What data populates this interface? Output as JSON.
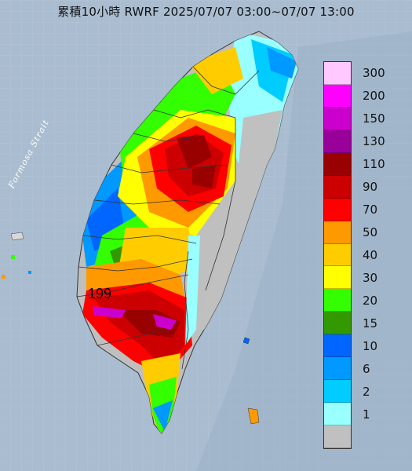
{
  "title": "累積10小時 RWRF 2025/07/07 03:00~07/07 13:00",
  "strait_label": "Formosa Strait",
  "max_value_label": "199",
  "legend": {
    "items": [
      {
        "label": "300",
        "color": "#ffc9ff"
      },
      {
        "label": "200",
        "color": "#ff00ff"
      },
      {
        "label": "150",
        "color": "#cc00cc"
      },
      {
        "label": "130",
        "color": "#990099"
      },
      {
        "label": "110",
        "color": "#990000"
      },
      {
        "label": "90",
        "color": "#cc0000"
      },
      {
        "label": "70",
        "color": "#ff0000"
      },
      {
        "label": "50",
        "color": "#ff9900"
      },
      {
        "label": "40",
        "color": "#ffcc00"
      },
      {
        "label": "30",
        "color": "#ffff00"
      },
      {
        "label": "20",
        "color": "#33ff00"
      },
      {
        "label": "15",
        "color": "#339900"
      },
      {
        "label": "10",
        "color": "#0066ff"
      },
      {
        "label": "6",
        "color": "#0099ff"
      },
      {
        "label": "2",
        "color": "#00ccff"
      },
      {
        "label": "1",
        "color": "#99ffff"
      },
      {
        "label": "",
        "color": "#c0c0c0"
      }
    ]
  }
}
